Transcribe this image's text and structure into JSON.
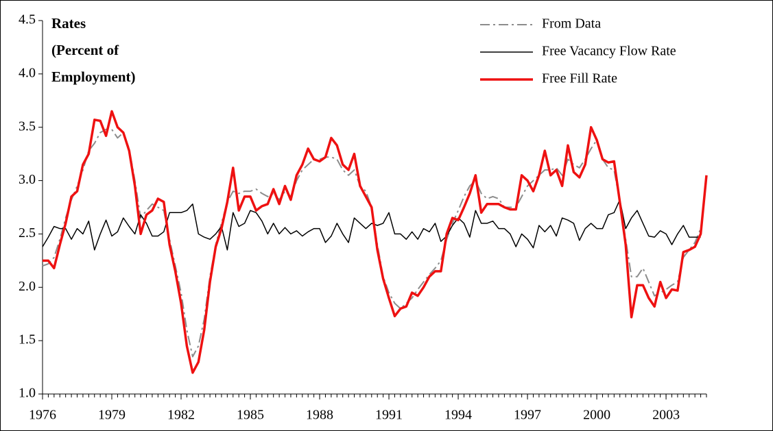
{
  "chart_data": {
    "type": "line",
    "title": [
      "Rates",
      "(Percent of",
      "Employment)"
    ],
    "x": [
      1976,
      1976.25,
      1976.5,
      1976.75,
      1977,
      1977.25,
      1977.5,
      1977.75,
      1978,
      1978.25,
      1978.5,
      1978.75,
      1979,
      1979.25,
      1979.5,
      1979.75,
      1980,
      1980.25,
      1980.5,
      1980.75,
      1981,
      1981.25,
      1981.5,
      1981.75,
      1982,
      1982.25,
      1982.5,
      1982.75,
      1983,
      1983.25,
      1983.5,
      1983.75,
      1984,
      1984.25,
      1984.5,
      1984.75,
      1985,
      1985.25,
      1985.5,
      1985.75,
      1986,
      1986.25,
      1986.5,
      1986.75,
      1987,
      1987.25,
      1987.5,
      1987.75,
      1988,
      1988.25,
      1988.5,
      1988.75,
      1989,
      1989.25,
      1989.5,
      1989.75,
      1990,
      1990.25,
      1990.5,
      1990.75,
      1991,
      1991.25,
      1991.5,
      1991.75,
      1992,
      1992.25,
      1992.5,
      1992.75,
      1993,
      1993.25,
      1993.5,
      1993.75,
      1994,
      1994.25,
      1994.5,
      1994.75,
      1995,
      1995.25,
      1995.5,
      1995.75,
      1996,
      1996.25,
      1996.5,
      1996.75,
      1997,
      1997.25,
      1997.5,
      1997.75,
      1998,
      1998.25,
      1998.5,
      1998.75,
      1999,
      1999.25,
      1999.5,
      1999.75,
      2000,
      2000.25,
      2000.5,
      2000.75,
      2001,
      2001.25,
      2001.5,
      2001.75,
      2002,
      2002.25,
      2002.5,
      2002.75,
      2003,
      2003.25,
      2003.5,
      2003.75,
      2004,
      2004.25,
      2004.5,
      2004.75
    ],
    "series": [
      {
        "name": "From Data",
        "color": "#8c8c8c",
        "line_style": "dashdot",
        "width": 2,
        "values": [
          2.2,
          2.22,
          2.28,
          2.45,
          2.65,
          2.82,
          2.95,
          3.1,
          3.28,
          3.35,
          3.45,
          3.48,
          3.48,
          3.4,
          3.45,
          3.3,
          3.0,
          2.65,
          2.72,
          2.78,
          2.75,
          2.72,
          2.45,
          2.2,
          1.95,
          1.6,
          1.35,
          1.45,
          1.7,
          2.1,
          2.4,
          2.6,
          2.8,
          2.9,
          2.88,
          2.9,
          2.9,
          2.92,
          2.88,
          2.85,
          2.88,
          2.82,
          2.9,
          2.85,
          3.0,
          3.1,
          3.15,
          3.2,
          3.2,
          3.22,
          3.22,
          3.2,
          3.1,
          3.05,
          3.1,
          2.95,
          2.9,
          2.75,
          2.4,
          2.1,
          1.95,
          1.85,
          1.8,
          1.85,
          1.9,
          1.98,
          2.05,
          2.12,
          2.18,
          2.25,
          2.45,
          2.6,
          2.72,
          2.85,
          2.95,
          3.0,
          2.88,
          2.83,
          2.85,
          2.83,
          2.75,
          2.75,
          2.75,
          2.85,
          2.95,
          3.0,
          3.05,
          3.1,
          3.1,
          3.12,
          3.05,
          3.2,
          3.15,
          3.12,
          3.2,
          3.3,
          3.38,
          3.2,
          3.12,
          3.1,
          2.8,
          2.45,
          2.1,
          2.1,
          2.18,
          2.05,
          1.92,
          1.95,
          1.98,
          2.02,
          2.05,
          2.28,
          2.35,
          2.42,
          2.55,
          null
        ]
      },
      {
        "name": "Free Vacancy Flow Rate",
        "color": "#000000",
        "line_style": "solid",
        "width": 1.5,
        "values": [
          2.38,
          2.47,
          2.57,
          2.55,
          2.55,
          2.45,
          2.55,
          2.5,
          2.62,
          2.35,
          2.5,
          2.63,
          2.48,
          2.52,
          2.65,
          2.57,
          2.5,
          2.68,
          2.6,
          2.48,
          2.48,
          2.52,
          2.7,
          2.7,
          2.7,
          2.72,
          2.78,
          2.5,
          2.47,
          2.45,
          2.5,
          2.57,
          2.35,
          2.7,
          2.57,
          2.6,
          2.72,
          2.7,
          2.62,
          2.5,
          2.6,
          2.5,
          2.56,
          2.5,
          2.53,
          2.48,
          2.52,
          2.55,
          2.55,
          2.42,
          2.48,
          2.6,
          2.5,
          2.42,
          2.65,
          2.6,
          2.55,
          2.6,
          2.58,
          2.6,
          2.7,
          2.5,
          2.5,
          2.45,
          2.52,
          2.45,
          2.55,
          2.52,
          2.6,
          2.43,
          2.48,
          2.58,
          2.65,
          2.6,
          2.47,
          2.72,
          2.6,
          2.6,
          2.62,
          2.55,
          2.55,
          2.5,
          2.38,
          2.5,
          2.45,
          2.37,
          2.58,
          2.52,
          2.58,
          2.48,
          2.65,
          2.63,
          2.6,
          2.44,
          2.55,
          2.6,
          2.55,
          2.55,
          2.68,
          2.7,
          2.82,
          2.55,
          2.65,
          2.72,
          2.6,
          2.48,
          2.47,
          2.53,
          2.5,
          2.4,
          2.5,
          2.58,
          2.47,
          2.47,
          2.47,
          null
        ]
      },
      {
        "name": "Free Fill Rate",
        "color": "#ee1111",
        "line_style": "solid",
        "width": 3.5,
        "values": [
          2.25,
          2.25,
          2.18,
          2.4,
          2.6,
          2.85,
          2.9,
          3.15,
          3.25,
          3.57,
          3.56,
          3.42,
          3.65,
          3.5,
          3.45,
          3.28,
          2.95,
          2.5,
          2.68,
          2.72,
          2.83,
          2.8,
          2.4,
          2.15,
          1.85,
          1.45,
          1.2,
          1.3,
          1.6,
          2.05,
          2.38,
          2.55,
          2.8,
          3.12,
          2.72,
          2.85,
          2.85,
          2.72,
          2.76,
          2.78,
          2.92,
          2.78,
          2.95,
          2.82,
          3.05,
          3.15,
          3.3,
          3.2,
          3.18,
          3.22,
          3.4,
          3.33,
          3.15,
          3.1,
          3.25,
          2.95,
          2.85,
          2.75,
          2.35,
          2.08,
          1.9,
          1.73,
          1.8,
          1.82,
          1.95,
          1.92,
          2.0,
          2.1,
          2.15,
          2.15,
          2.5,
          2.65,
          2.63,
          2.75,
          2.88,
          3.05,
          2.7,
          2.78,
          2.78,
          2.78,
          2.75,
          2.73,
          2.73,
          3.05,
          3.0,
          2.9,
          3.05,
          3.28,
          3.05,
          3.1,
          2.95,
          3.33,
          3.08,
          3.03,
          3.15,
          3.5,
          3.38,
          3.2,
          3.17,
          3.18,
          2.8,
          2.4,
          1.72,
          2.02,
          2.02,
          1.9,
          1.82,
          2.05,
          1.9,
          1.98,
          1.97,
          2.33,
          2.35,
          2.38,
          2.5,
          3.05
        ]
      }
    ],
    "xlim": [
      1976,
      2004.75
    ],
    "xticks": [
      1976,
      1979,
      1982,
      1985,
      1988,
      1991,
      1994,
      1997,
      2000,
      2003
    ],
    "ylim": [
      1.0,
      4.5
    ],
    "yticks": [
      {
        "value": 1.0,
        "label": "1.0"
      },
      {
        "value": 1.5,
        "label": "1.5"
      },
      {
        "value": 2.0,
        "label": "2.0"
      },
      {
        "value": 2.5,
        "label": "2.5"
      },
      {
        "value": 3.0,
        "label": "3.0"
      },
      {
        "value": 3.5,
        "label": "3.5"
      },
      {
        "value": 4.0,
        "label": "4.0"
      },
      {
        "value": 4.5,
        "label": "4.5"
      }
    ],
    "grid": false,
    "legend": "top-right"
  }
}
